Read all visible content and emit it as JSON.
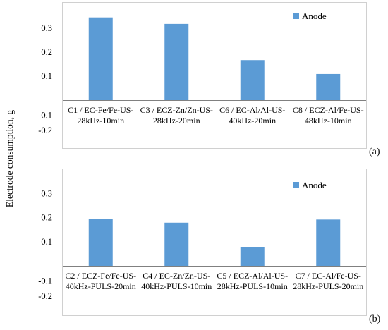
{
  "figure": {
    "ylabel": "Electrode consumption, g"
  },
  "chart_data": [
    {
      "type": "bar",
      "panel_label": "(a)",
      "title": "",
      "xlabel": "",
      "ylabel": "Electrode consumption, g",
      "legend": [
        "Anode"
      ],
      "legend_position": "top-right",
      "grid": false,
      "bar_color": "#5b9bd5",
      "yticks": [
        "0.3",
        "0.2",
        "0.1",
        "-0.1",
        "-0.2"
      ],
      "ylim": [
        -0.2,
        0.35
      ],
      "categories": [
        [
          "C1 / EC-Fe/Fe-US-",
          "28kHz-10min"
        ],
        [
          "C3 / ECZ-Zn/Zn-US-",
          "28kHz-20min"
        ],
        [
          "C6 / EC-Al/Al-US-",
          "40kHz-20min"
        ],
        [
          "C8 / ECZ-Al/Fe-US-",
          "48kHz-10min"
        ]
      ],
      "series": [
        {
          "name": "Anode",
          "values": [
            0.345,
            0.318,
            0.167,
            0.109
          ]
        }
      ]
    },
    {
      "type": "bar",
      "panel_label": "(b)",
      "title": "",
      "xlabel": "",
      "ylabel": "Electrode consumption, g",
      "legend": [
        "Anode"
      ],
      "legend_position": "top-right",
      "grid": false,
      "bar_color": "#5b9bd5",
      "yticks": [
        "0.3",
        "0.2",
        "0.1",
        "-0.1",
        "-0.2"
      ],
      "ylim": [
        -0.2,
        0.35
      ],
      "categories": [
        [
          "C2 / ECZ-Fe/Fe-US-",
          "40kHz-PULS-20min"
        ],
        [
          "C4 / EC-Zn/Zn-US-",
          "40kHz-PULS-10min"
        ],
        [
          "C5 / ECZ-Al/Al-US-",
          "28kHz-PULS-10min"
        ],
        [
          "C7 / EC-Al/Fe-US-",
          "28kHz-PULS-20min"
        ]
      ],
      "series": [
        {
          "name": "Anode",
          "values": [
            0.193,
            0.179,
            0.077,
            0.192
          ]
        }
      ]
    }
  ]
}
